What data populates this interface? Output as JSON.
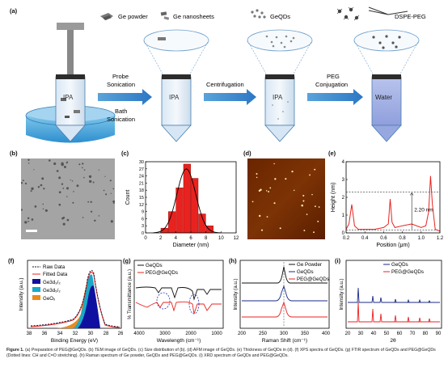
{
  "panel_labels": {
    "a": "(a)",
    "b": "(b)",
    "c": "(c)",
    "d": "(d)",
    "e": "(e)",
    "f": "(f)",
    "g": "(g)",
    "h": "(h)",
    "i": "(i)"
  },
  "panel_a": {
    "legend_powder": "Ge powder",
    "legend_nanosheets": "Ge nanosheets",
    "legend_geqds": "GeQDs",
    "legend_dspe": "DSPE-PEG",
    "tube_labels": [
      "IPA",
      "IPA",
      "IPA",
      "Water"
    ],
    "step1_top": "Probe",
    "step1_top2": "Sonication",
    "step1_bottom": "Bath",
    "step1_bottom2": "Sonication",
    "step2": "Centrifugation",
    "step3_top": "PEG",
    "step3_bottom": "Conjugation"
  },
  "chart_data": [
    {
      "panel": "c",
      "type": "bar",
      "xlabel": "Diameter (nm)",
      "ylabel": "Count",
      "xlim": [
        0,
        12
      ],
      "ylim": [
        0,
        30
      ],
      "xticks": [
        "0",
        "2",
        "4",
        "6",
        "8",
        "10",
        "12"
      ],
      "yticks": [
        "0",
        "3",
        "6",
        "9",
        "12",
        "15",
        "18",
        "21",
        "24",
        "27",
        "30"
      ],
      "bins": [
        {
          "x": 2.5,
          "value": 2
        },
        {
          "x": 3.5,
          "value": 9
        },
        {
          "x": 4.5,
          "value": 19
        },
        {
          "x": 5.5,
          "value": 29
        },
        {
          "x": 6.5,
          "value": 23
        },
        {
          "x": 7.5,
          "value": 8
        },
        {
          "x": 8.5,
          "value": 3
        }
      ],
      "colors": {
        "bar": "#e8231f",
        "fit": "#000000"
      }
    },
    {
      "panel": "e",
      "type": "line",
      "xlabel": "Position (μm)",
      "ylabel": "Height (nm)",
      "xlim": [
        0.2,
        1.2
      ],
      "ylim": [
        0,
        4
      ],
      "xticks": [
        "0.2",
        "0.4",
        "0.6",
        "0.8",
        "1.0",
        "1.2"
      ],
      "yticks": [
        "0",
        "1",
        "2",
        "3",
        "4"
      ],
      "annotation": "2.20 nm",
      "x": [
        0.2,
        0.23,
        0.26,
        0.29,
        0.33,
        0.4,
        0.5,
        0.6,
        0.65,
        0.67,
        0.69,
        0.72,
        0.8,
        0.9,
        1.0,
        1.05,
        1.08,
        1.1,
        1.12,
        1.15,
        1.2
      ],
      "y": [
        0.2,
        0.5,
        1.6,
        0.4,
        0.2,
        0.2,
        0.2,
        0.3,
        0.5,
        1.9,
        0.6,
        0.3,
        0.4,
        0.5,
        0.3,
        0.4,
        1.2,
        3.2,
        1.6,
        0.2,
        0.1
      ],
      "colors": {
        "line": "#e8231f"
      }
    },
    {
      "panel": "f",
      "type": "line",
      "xlabel": "Binding Energy (eV)",
      "ylabel": "Intensity (a.u.)",
      "xticks": [
        "38",
        "36",
        "34",
        "32",
        "30",
        "28",
        "26"
      ],
      "series": [
        {
          "name": "Raw Data",
          "color": "#1a1a3a"
        },
        {
          "name": "Fitted Data",
          "color": "#e8231f"
        },
        {
          "name": "Ge3d₃/₂",
          "color": "#1010a0"
        },
        {
          "name": "Ge3d₅/₂",
          "color": "#19a9c9"
        },
        {
          "name": "GeOₓ",
          "color": "#e98a1c"
        }
      ]
    },
    {
      "panel": "g",
      "type": "line",
      "xlabel": "Wavelength (cm⁻¹)",
      "ylabel": "% Transmittance (a.u.)",
      "xticks": [
        "4000",
        "3000",
        "2000",
        "1000"
      ],
      "series": [
        {
          "name": "GeQDs",
          "color": "#111111"
        },
        {
          "name": "PEG@GeQDs",
          "color": "#e8231f"
        }
      ]
    },
    {
      "panel": "h",
      "type": "line",
      "xlabel": "Raman Shift (cm⁻¹)",
      "ylabel": "Intensity (a.u.)",
      "xticks": [
        "200",
        "250",
        "300",
        "350",
        "400"
      ],
      "series": [
        {
          "name": "Ge Powder",
          "color": "#111111"
        },
        {
          "name": "GeQDs",
          "color": "#1a2a8a"
        },
        {
          "name": "PEG@GeQDs",
          "color": "#e8231f"
        }
      ]
    },
    {
      "panel": "i",
      "type": "line",
      "xlabel": "2θ",
      "ylabel": "Intensity (a.u.)",
      "xticks": [
        "20",
        "30",
        "40",
        "50",
        "60",
        "70",
        "80",
        "90"
      ],
      "series": [
        {
          "name": "GeQDs",
          "color": "#1a2a8a"
        },
        {
          "name": "PEG@GeQDs",
          "color": "#e8231f"
        }
      ]
    }
  ],
  "caption": {
    "lead": "Figure 1.",
    "text": "(a) Preparation of PEG@GeQDs. (b) TEM image of GeQDs. (c) Size distribution of (b). (d) AFM image of GeQDs. (e) Thickness of GeQDs in (d). (f) XPS spectra of GeQDs. (g) FTIR spectrum of GeQDs and PEG@GeQDs (Dotted lines: CH and C=O stretching). (h) Raman spectrum of Ge powder, GeQDs and PEG@GeQDs. (i) XRD spectrum of GeQDs and PEG@GeQDs."
  }
}
